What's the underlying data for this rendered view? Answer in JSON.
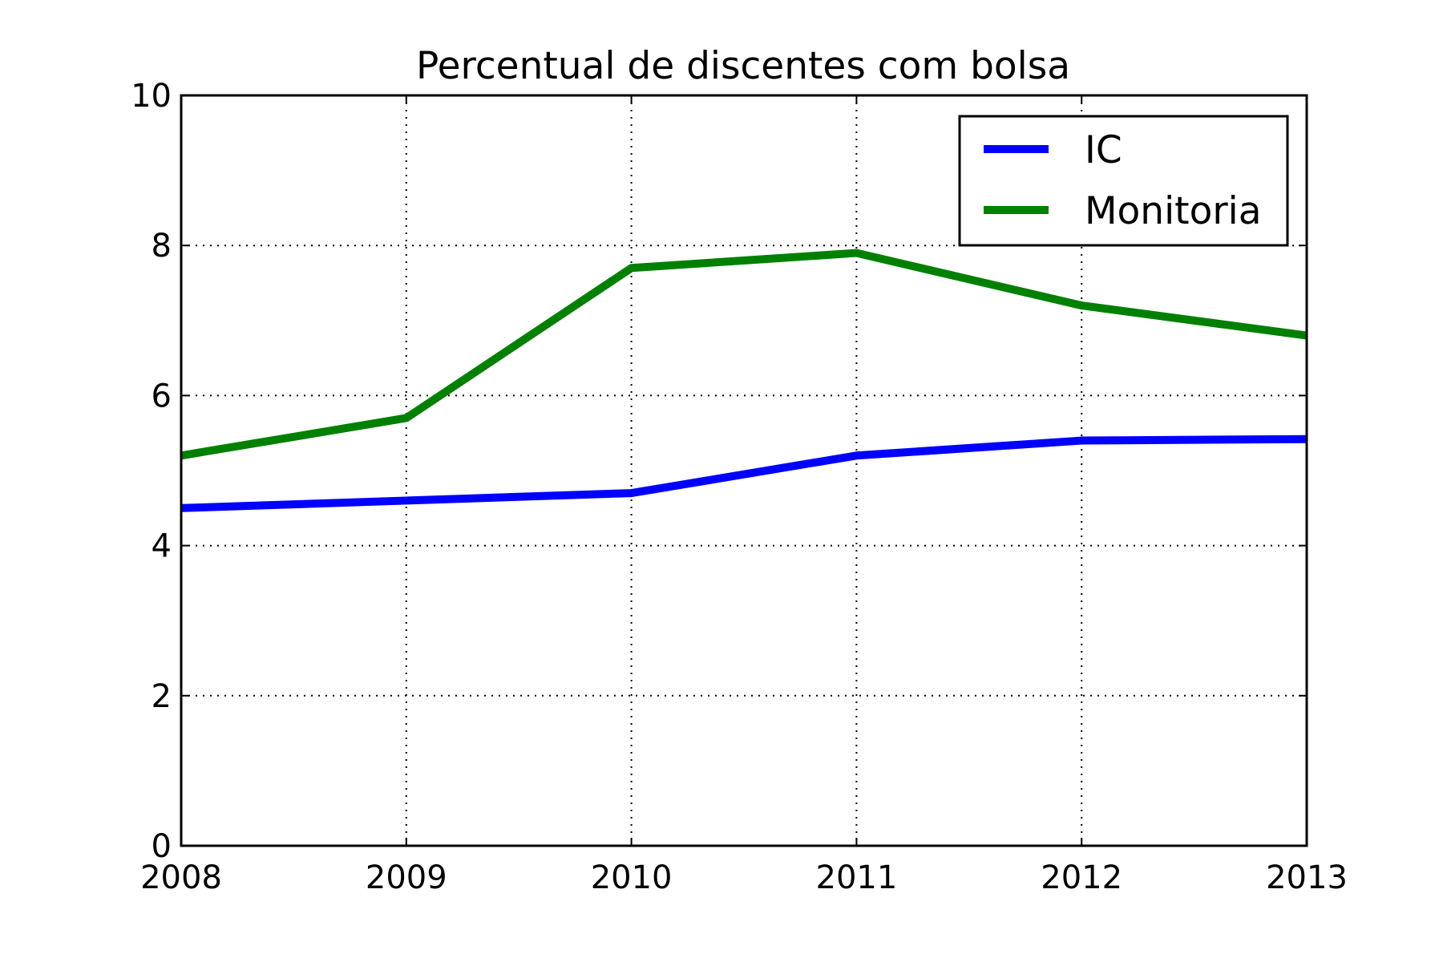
{
  "chart_data": {
    "type": "line",
    "title": "Percentual de discentes com bolsa",
    "xlabel": "",
    "ylabel": "",
    "x": [
      2008,
      2009,
      2010,
      2011,
      2012,
      2013
    ],
    "xlim": [
      2008,
      2013
    ],
    "ylim": [
      0,
      10
    ],
    "x_ticks": [
      "2008",
      "2009",
      "2010",
      "2011",
      "2012",
      "2013"
    ],
    "y_ticks": [
      "0",
      "2",
      "4",
      "6",
      "8",
      "10"
    ],
    "y_tick_values": [
      0,
      2,
      4,
      6,
      8,
      10
    ],
    "grid": true,
    "legend_position": "top-right",
    "series": [
      {
        "name": "IC",
        "color": "#0000ff",
        "values": [
          4.5,
          4.6,
          4.7,
          5.2,
          5.4,
          5.42
        ]
      },
      {
        "name": "Monitoria",
        "color": "#008000",
        "values": [
          5.2,
          5.7,
          7.7,
          7.9,
          7.2,
          6.8
        ]
      }
    ]
  }
}
